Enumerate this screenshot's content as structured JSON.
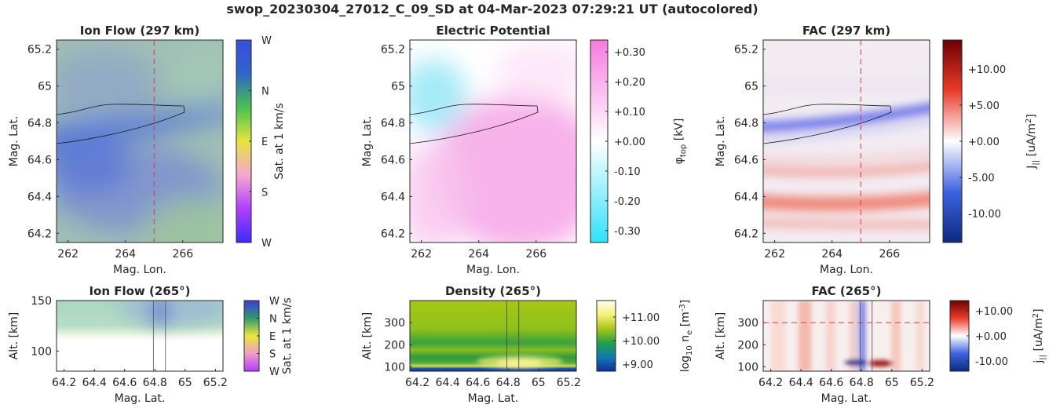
{
  "title": "swop_20230304_27012_C_09_SD at 04-Mar-2023 07:29:21 UT (autocolored)",
  "chart_data": [
    {
      "id": "ion-flow-top",
      "type": "heatmap",
      "title": "Ion Flow (297 km)",
      "xlabel": "Mag. Lon.",
      "ylabel": "Mag. Lat.",
      "xlim": [
        261.6,
        267.4
      ],
      "ylim": [
        64.15,
        65.25
      ],
      "xticks": [
        {
          "v": 262,
          "l": "262"
        },
        {
          "v": 264,
          "l": "264"
        },
        {
          "v": 266,
          "l": "266"
        }
      ],
      "yticks": [
        {
          "v": 64.2,
          "l": "64.2"
        },
        {
          "v": 64.4,
          "l": "64.4"
        },
        {
          "v": 64.6,
          "l": "64.6"
        },
        {
          "v": 64.8,
          "l": "64.8"
        },
        {
          "v": 65,
          "l": "65"
        },
        {
          "v": 65.2,
          "l": "65.2"
        }
      ],
      "cursor_x": 265,
      "colorbar": {
        "label": "Sat. at 1 km/s",
        "labels": [
          "W",
          "N",
          "E",
          "S",
          "W"
        ],
        "colors": [
          "#3b4be0",
          "#2f66c8",
          "#46c24e",
          "#e7e43c",
          "#f5a8d0",
          "#b23dff",
          "#3b2cff"
        ]
      },
      "ion_flow_background": [
        "#9fbfb4",
        "#7c8fd0",
        "#9cc3a0"
      ]
    },
    {
      "id": "potential",
      "type": "heatmap",
      "title": "Electric Potential",
      "xlabel": "Mag. Lon.",
      "ylabel": "Mag. Lat.",
      "xlim": [
        261.6,
        267.4
      ],
      "ylim": [
        64.15,
        65.25
      ],
      "xticks": [
        {
          "v": 262,
          "l": "262"
        },
        {
          "v": 264,
          "l": "264"
        },
        {
          "v": 266,
          "l": "266"
        }
      ],
      "yticks": [
        {
          "v": 64.2,
          "l": "64.2"
        },
        {
          "v": 64.4,
          "l": "64.4"
        },
        {
          "v": 64.6,
          "l": "64.6"
        },
        {
          "v": 64.8,
          "l": "64.8"
        },
        {
          "v": 65,
          "l": "65"
        },
        {
          "v": 65.2,
          "l": "65.2"
        }
      ],
      "colorbar": {
        "label_main": "φ",
        "label_sub": "top",
        "label_unit": " [kV]",
        "min": -0.34,
        "max": 0.34,
        "ticks": [
          {
            "v": 0.3,
            "l": "+0.30"
          },
          {
            "v": 0.2,
            "l": "+0.20"
          },
          {
            "v": 0.1,
            "l": "+0.10"
          },
          {
            "v": 0,
            "l": "+0.00"
          },
          {
            "v": -0.1,
            "l": "-0.10"
          },
          {
            "v": -0.2,
            "l": "-0.20"
          },
          {
            "v": -0.3,
            "l": "-0.30"
          }
        ],
        "colors": [
          "#2ee2f8",
          "#ffffff",
          "#f67ae0"
        ]
      }
    },
    {
      "id": "fac-top",
      "type": "heatmap",
      "title": "FAC (297 km)",
      "xlabel": "Mag. Lon.",
      "ylabel": "Mag. Lat.",
      "xlim": [
        261.6,
        267.4
      ],
      "ylim": [
        64.15,
        65.25
      ],
      "xticks": [
        {
          "v": 262,
          "l": "262"
        },
        {
          "v": 264,
          "l": "264"
        },
        {
          "v": 266,
          "l": "266"
        }
      ],
      "yticks": [
        {
          "v": 64.2,
          "l": "64.2"
        },
        {
          "v": 64.4,
          "l": "64.4"
        },
        {
          "v": 64.6,
          "l": "64.6"
        },
        {
          "v": 64.8,
          "l": "64.8"
        },
        {
          "v": 65,
          "l": "65"
        },
        {
          "v": 65.2,
          "l": "65.2"
        }
      ],
      "cursor_x": 265,
      "colorbar": {
        "label_main": "J",
        "label_sub": "||",
        "label_unit": " [uA/m",
        "label_sup": "2",
        "label_end": "]",
        "min": -14,
        "max": 14,
        "ticks": [
          {
            "v": 10,
            "l": "+10.00"
          },
          {
            "v": 5,
            "l": "+5.00"
          },
          {
            "v": 0,
            "l": "+0.00"
          },
          {
            "v": -5,
            "l": "-5.00"
          },
          {
            "v": -10,
            "l": "-10.00"
          }
        ],
        "colors": [
          "#0b2a80",
          "#3e63e0",
          "#ffffff",
          "#ea3c2c",
          "#6e0000"
        ]
      }
    },
    {
      "id": "ion-flow-bottom",
      "type": "heatmap",
      "title": "Ion Flow (265°)",
      "xlabel": "Mag. Lat.",
      "ylabel": "Alt. [km]",
      "xlim": [
        64.15,
        65.25
      ],
      "ylim": [
        80,
        150
      ],
      "xticks": [
        {
          "v": 64.2,
          "l": "64.2"
        },
        {
          "v": 64.4,
          "l": "64.4"
        },
        {
          "v": 64.6,
          "l": "64.6"
        },
        {
          "v": 64.8,
          "l": "64.8"
        },
        {
          "v": 65,
          "l": "65"
        },
        {
          "v": 65.2,
          "l": "65.2"
        }
      ],
      "yticks": [
        {
          "v": 100,
          "l": "100"
        },
        {
          "v": 150,
          "l": "150"
        }
      ],
      "vlines": [
        64.79,
        64.87
      ],
      "colorbar": {
        "label": "Sat. at 1 km/s",
        "labels": [
          "W",
          "N",
          "E",
          "S",
          "W"
        ],
        "colors": [
          "#3d3be0",
          "#2f9a6a",
          "#e8e83a",
          "#f29cc8",
          "#b23dff"
        ]
      }
    },
    {
      "id": "density",
      "type": "heatmap",
      "title": "Density (265°)",
      "xlabel": "Mag. Lat.",
      "ylabel": "Alt. [km]",
      "xlim": [
        64.15,
        65.25
      ],
      "ylim": [
        80,
        400
      ],
      "xticks": [
        {
          "v": 64.2,
          "l": "64.2"
        },
        {
          "v": 64.4,
          "l": "64.4"
        },
        {
          "v": 64.6,
          "l": "64.6"
        },
        {
          "v": 64.8,
          "l": "64.8"
        },
        {
          "v": 65,
          "l": "65"
        },
        {
          "v": 65.2,
          "l": "65.2"
        }
      ],
      "yticks": [
        {
          "v": 100,
          "l": "100"
        },
        {
          "v": 200,
          "l": "200"
        },
        {
          "v": 300,
          "l": "300"
        }
      ],
      "vlines": [
        64.79,
        64.87
      ],
      "colorbar": {
        "label_main": "log",
        "label_sub": "10",
        "label_unit": " n",
        "label_sub2": "e",
        "label_unit2": " [m",
        "label_sup": "-3",
        "label_end": "]",
        "min": 8.7,
        "max": 11.7,
        "ticks": [
          {
            "v": 11,
            "l": "+11.00"
          },
          {
            "v": 10,
            "l": "+10.00"
          },
          {
            "v": 9,
            "l": "+9.00"
          }
        ],
        "colors": [
          "#1030a0",
          "#0f7ab0",
          "#22a04a",
          "#a6c816",
          "#f6f07a",
          "#fffff0"
        ]
      }
    },
    {
      "id": "fac-bottom",
      "type": "heatmap",
      "title": "FAC (265°)",
      "xlabel": "Mag. Lat.",
      "ylabel": "Alt. [km]",
      "xlim": [
        64.15,
        65.25
      ],
      "ylim": [
        80,
        400
      ],
      "xticks": [
        {
          "v": 64.2,
          "l": "64.2"
        },
        {
          "v": 64.4,
          "l": "64.4"
        },
        {
          "v": 64.6,
          "l": "64.6"
        },
        {
          "v": 64.8,
          "l": "64.8"
        },
        {
          "v": 65,
          "l": "65"
        },
        {
          "v": 65.2,
          "l": "65.2"
        }
      ],
      "yticks": [
        {
          "v": 100,
          "l": "100"
        },
        {
          "v": 200,
          "l": "200"
        },
        {
          "v": 300,
          "l": "300"
        }
      ],
      "vlines": [
        64.79,
        64.87
      ],
      "cursor_y": 300,
      "colorbar": {
        "label_main": "j",
        "label_sub": "||",
        "label_unit": " [uA/m",
        "label_sup": "2",
        "label_end": "]",
        "min": -14,
        "max": 14,
        "ticks": [
          {
            "v": 10,
            "l": "+10.00"
          },
          {
            "v": 0,
            "l": "+0.00"
          },
          {
            "v": -10,
            "l": "-10.00"
          }
        ],
        "colors": [
          "#0b2a80",
          "#3e63e0",
          "#ffffff",
          "#ea3c2c",
          "#6e0000"
        ]
      }
    }
  ],
  "colors": {
    "cursor": "#d9383f",
    "axis": "#262626",
    "contour": "#1a1a1a"
  }
}
